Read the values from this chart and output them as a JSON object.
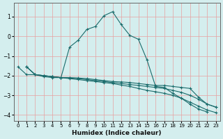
{
  "xlabel": "Humidex (Indice chaleur)",
  "background_color": "#d4eeee",
  "line_color": "#1a6b6b",
  "grid_color": "#e8a0a0",
  "xlim": [
    -0.5,
    23.5
  ],
  "ylim": [
    -4.3,
    1.7
  ],
  "yticks": [
    -4,
    -3,
    -2,
    -1,
    0,
    1
  ],
  "xticks": [
    0,
    1,
    2,
    3,
    4,
    5,
    6,
    7,
    8,
    9,
    10,
    11,
    12,
    13,
    14,
    15,
    16,
    17,
    18,
    19,
    20,
    21,
    22,
    23
  ],
  "series": [
    [
      -1.55,
      -1.95,
      -1.95,
      -2.05,
      -2.1,
      -2.1,
      -0.55,
      -0.2,
      0.35,
      0.5,
      1.05,
      1.25,
      0.6,
      0.05,
      -0.15,
      -1.2,
      -2.55,
      -2.6,
      -2.9,
      -3.15,
      -3.45,
      -3.7,
      -3.85
    ],
    [
      -1.55,
      -1.95,
      -2.0,
      -2.05,
      -2.1,
      -2.1,
      -2.12,
      -2.15,
      -2.2,
      -2.25,
      -2.3,
      -2.32,
      -2.35,
      -2.4,
      -2.45,
      -2.5,
      -2.5,
      -2.55,
      -2.6,
      -2.65,
      -3.1,
      -3.45,
      -3.6
    ],
    [
      -1.55,
      -1.95,
      -2.0,
      -2.05,
      -2.1,
      -2.12,
      -2.15,
      -2.2,
      -2.25,
      -2.3,
      -2.35,
      -2.4,
      -2.45,
      -2.5,
      -2.55,
      -2.6,
      -2.65,
      -2.75,
      -2.85,
      -3.0,
      -3.2,
      -3.45,
      -3.6
    ],
    [
      -1.55,
      -1.95,
      -2.0,
      -2.05,
      -2.1,
      -2.15,
      -2.2,
      -2.25,
      -2.3,
      -2.35,
      -2.4,
      -2.48,
      -2.55,
      -2.65,
      -2.75,
      -2.82,
      -2.9,
      -3.0,
      -3.15,
      -3.35,
      -3.55,
      -3.75,
      -3.88
    ]
  ]
}
